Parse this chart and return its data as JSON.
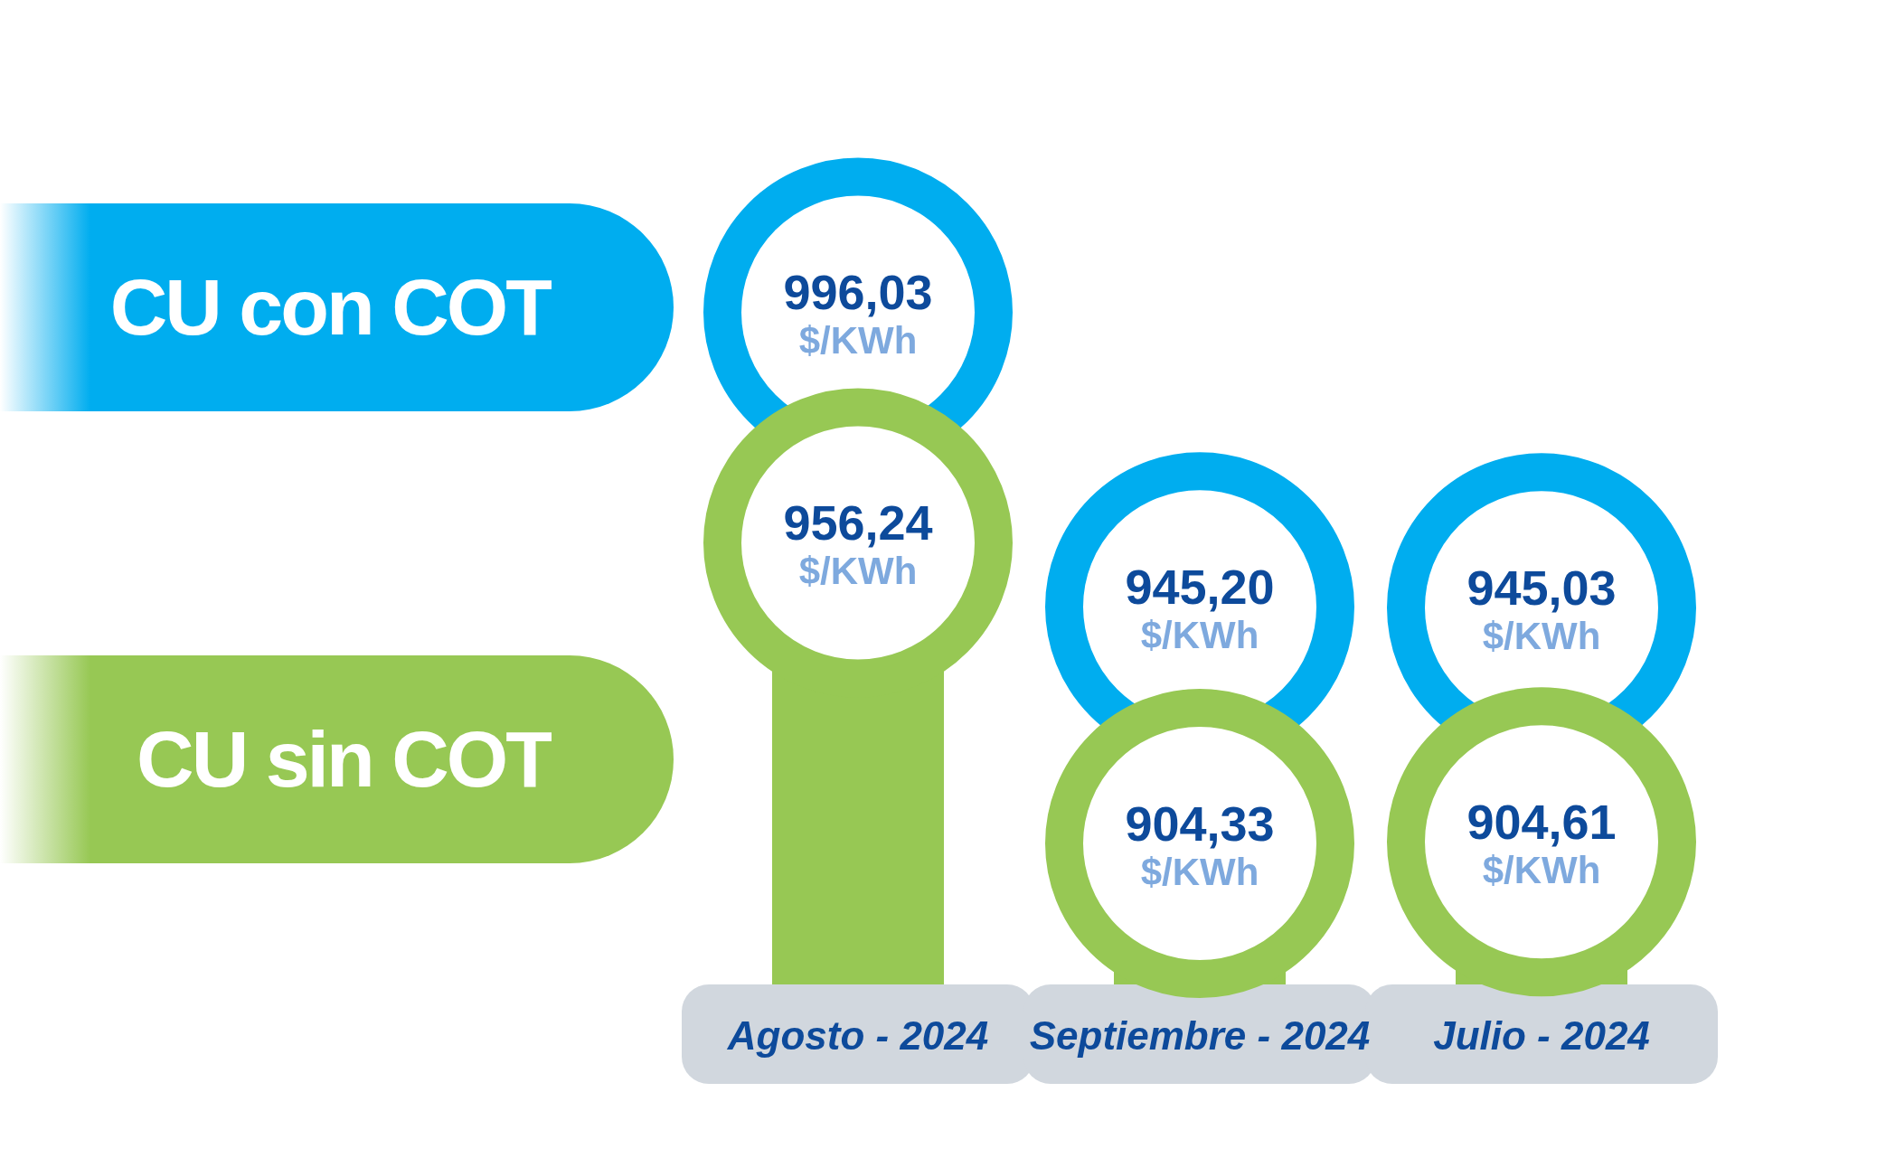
{
  "chart_data": {
    "type": "lollipop",
    "categories": [
      "Agosto - 2024",
      "Septiembre - 2024",
      "Julio - 2024"
    ],
    "series": [
      {
        "name": "CU con COT",
        "color": "#00adef",
        "values": [
          996.03,
          945.2,
          945.03
        ],
        "value_labels": [
          "996,03 $/KWh",
          "945,20 $/KWh",
          "945,03 $/KWh"
        ]
      },
      {
        "name": "CU sin COT",
        "color": "#97c854",
        "values": [
          956.24,
          904.33,
          904.61
        ],
        "value_labels": [
          "956,24 $/KWh",
          "904,33 $/KWh",
          "904,61 $/KWh"
        ]
      }
    ],
    "tick_labels": "x",
    "grid": false,
    "legend": "left"
  }
}
